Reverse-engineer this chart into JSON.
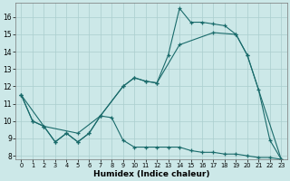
{
  "xlabel": "Humidex (Indice chaleur)",
  "background_color": "#cce8e8",
  "grid_color": "#aacece",
  "line_color": "#1a6b6b",
  "xlim": [
    -0.5,
    23.5
  ],
  "ylim": [
    7.8,
    16.8
  ],
  "yticks": [
    8,
    9,
    10,
    11,
    12,
    13,
    14,
    15,
    16
  ],
  "xticks": [
    0,
    1,
    2,
    3,
    4,
    5,
    6,
    7,
    8,
    9,
    10,
    11,
    12,
    13,
    14,
    15,
    16,
    17,
    18,
    19,
    20,
    21,
    22,
    23
  ],
  "line1_x": [
    0,
    1,
    2,
    3,
    4,
    5,
    6,
    7,
    8,
    9,
    10,
    11,
    12,
    13,
    14,
    15,
    16,
    17,
    18,
    19,
    20,
    21,
    22,
    23
  ],
  "line1_y": [
    11.5,
    10.0,
    9.7,
    8.8,
    9.3,
    8.8,
    9.3,
    10.3,
    10.2,
    8.9,
    8.5,
    8.5,
    8.5,
    8.5,
    8.5,
    8.3,
    8.2,
    8.2,
    8.1,
    8.1,
    8.0,
    7.9,
    7.9,
    7.8
  ],
  "line2_x": [
    0,
    1,
    2,
    3,
    4,
    5,
    6,
    7,
    9,
    10,
    11,
    12,
    13,
    14,
    15,
    16,
    17,
    18,
    19,
    20,
    21,
    22,
    23
  ],
  "line2_y": [
    11.5,
    10.0,
    9.7,
    8.8,
    9.3,
    8.8,
    9.3,
    10.3,
    12.0,
    12.5,
    12.3,
    12.2,
    13.8,
    16.5,
    15.7,
    15.7,
    15.6,
    15.5,
    15.0,
    13.8,
    11.8,
    8.9,
    7.8
  ],
  "line3_x": [
    0,
    2,
    5,
    7,
    9,
    10,
    11,
    12,
    14,
    17,
    19,
    20,
    23
  ],
  "line3_y": [
    11.5,
    9.7,
    9.3,
    10.3,
    12.0,
    12.5,
    12.3,
    12.2,
    14.4,
    15.1,
    15.0,
    13.8,
    7.8
  ]
}
